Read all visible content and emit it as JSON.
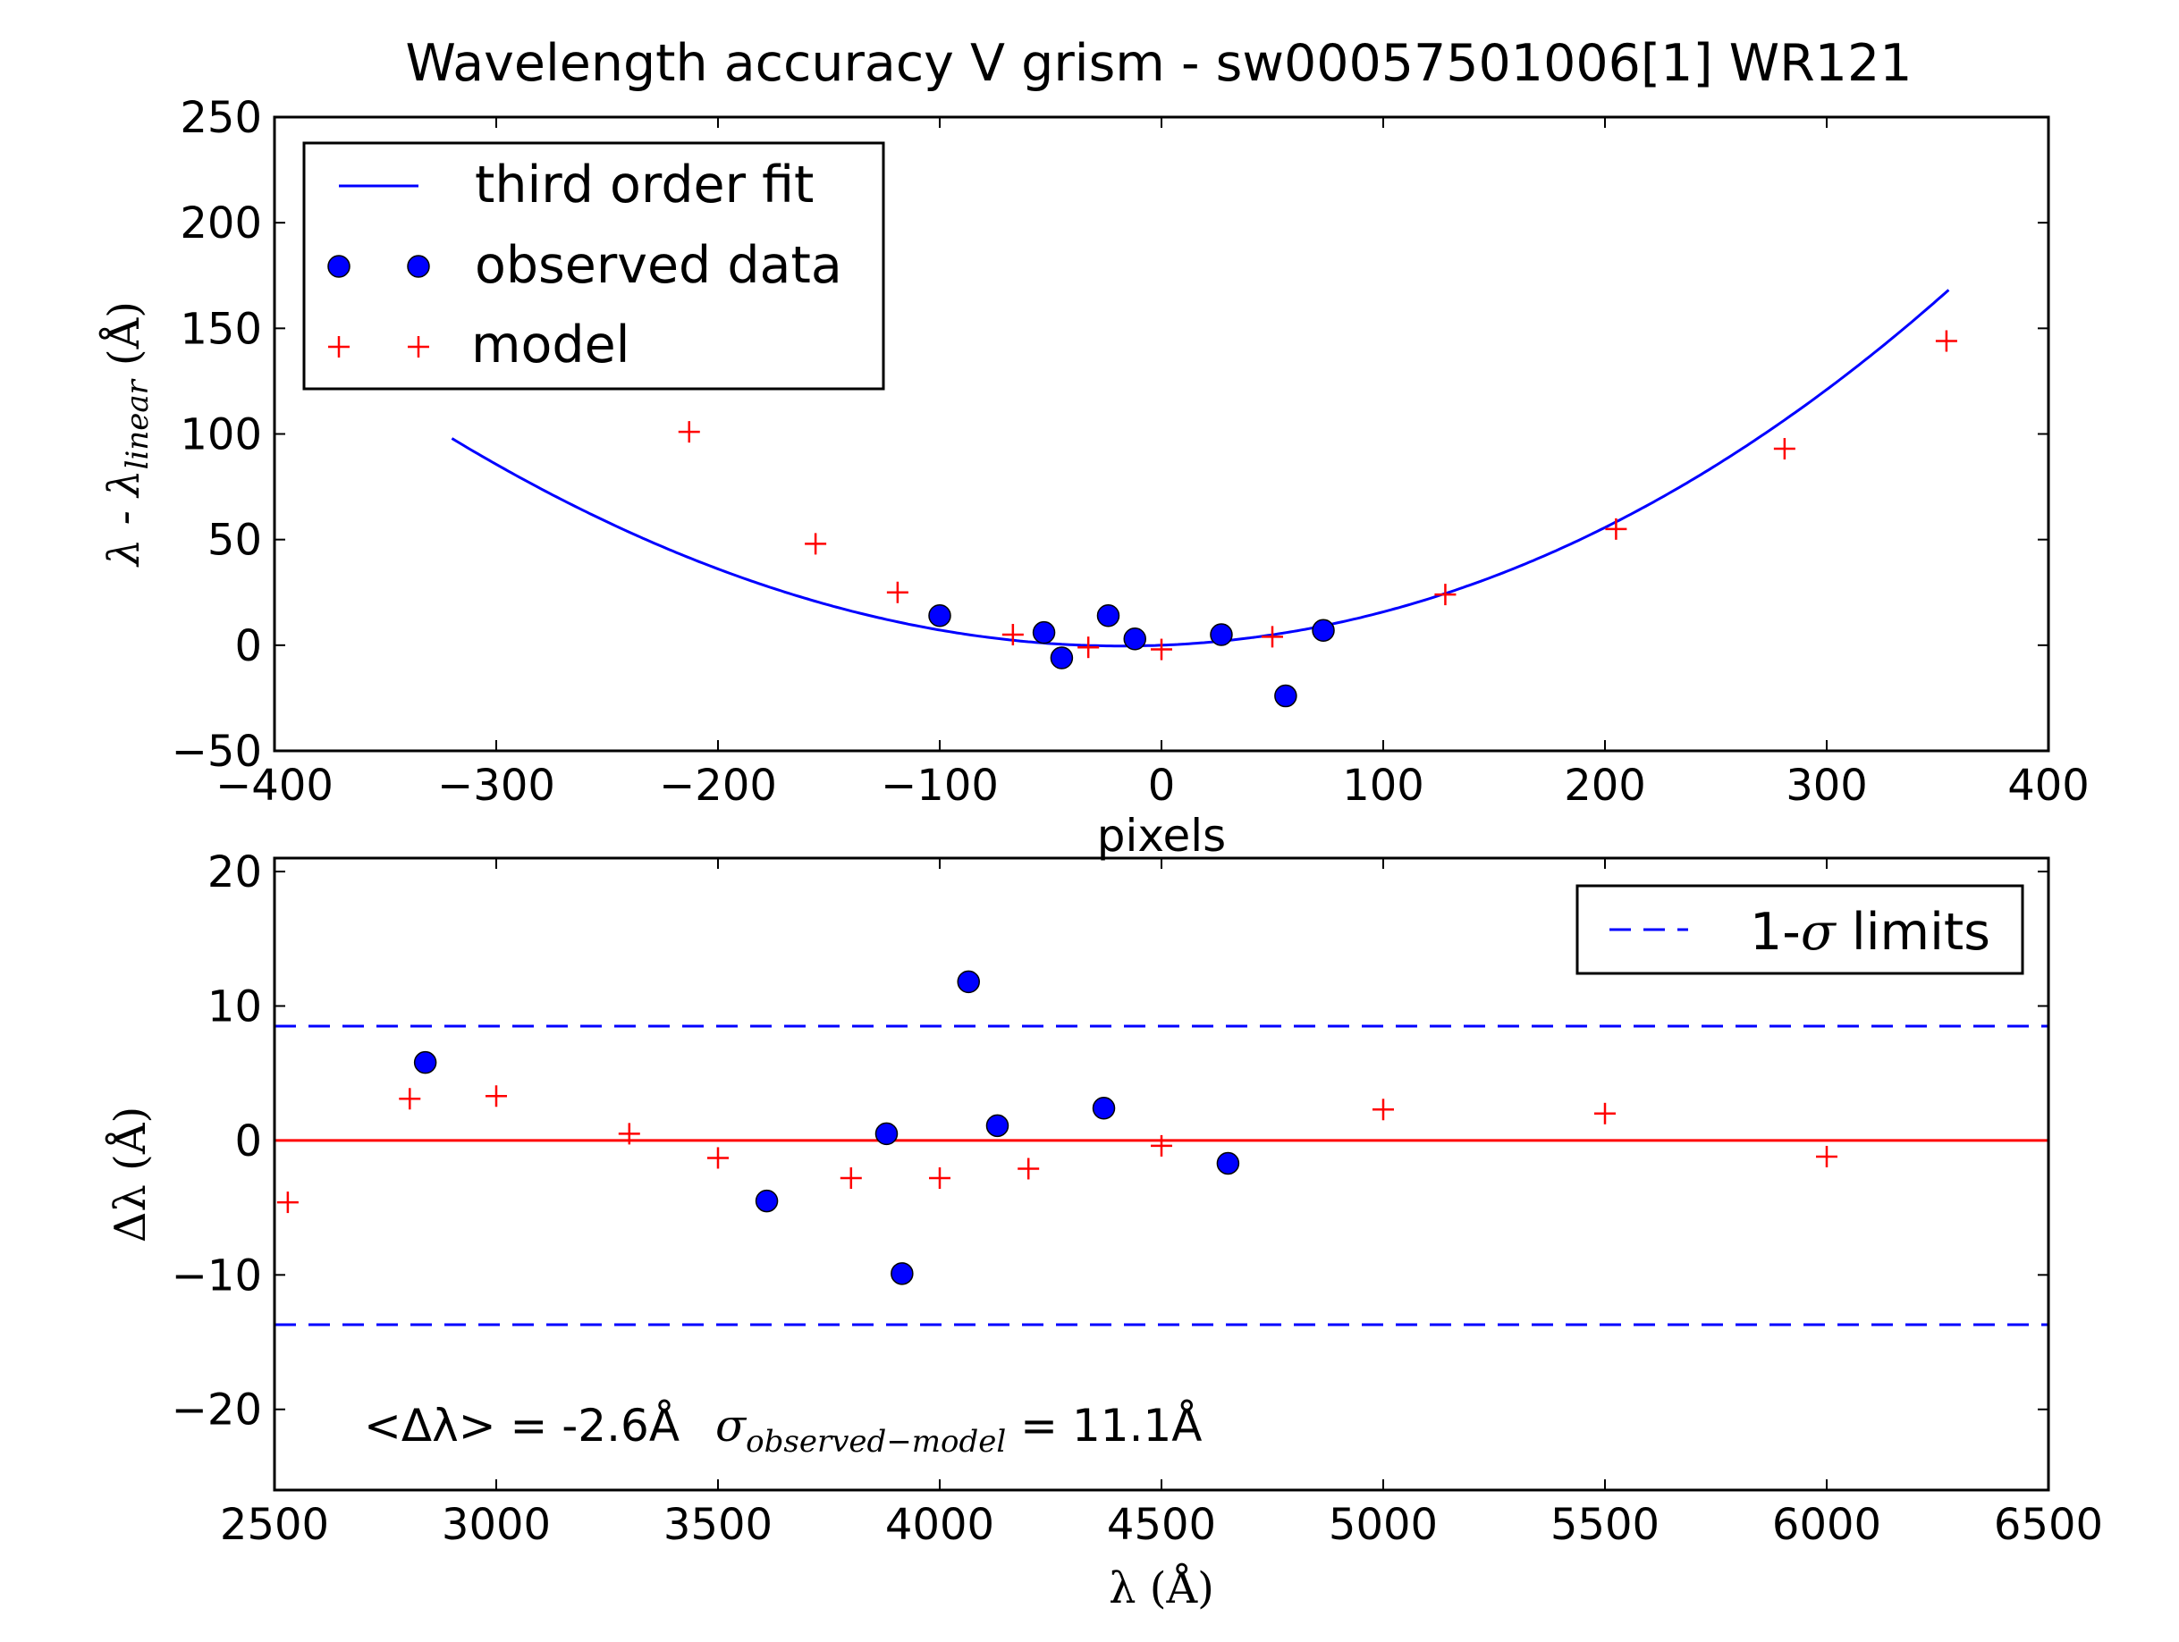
{
  "chart_data": [
    {
      "type": "scatter",
      "title": "Wavelength accuracy V grism - sw00057501006[1] WR121",
      "xlabel": "pixels",
      "ylabel": "λ - λlinear (Å)",
      "ylabel_main": "λ - λ",
      "ylabel_sub": "linear",
      "ylabel_unit": "(Å)",
      "xlim": [
        -400,
        400
      ],
      "ylim": [
        -50,
        250
      ],
      "xticks": [
        -400,
        -300,
        -200,
        -100,
        0,
        100,
        200,
        300,
        400
      ],
      "yticks": [
        -50,
        0,
        50,
        100,
        150,
        200,
        250
      ],
      "grid": false,
      "legend_position": "top-left",
      "legend": [
        {
          "key": "fit",
          "label": "third order fit"
        },
        {
          "key": "observed",
          "label": "observed data"
        },
        {
          "key": "model",
          "label": "model"
        }
      ],
      "colors": {
        "fit": "#0000ff",
        "observed": "#0000ff",
        "model": "#ff0000"
      },
      "series": [
        {
          "name": "third order fit",
          "style": "line",
          "coeffs": [
            0,
            0.041,
            0.001148,
            2e-07
          ]
        },
        {
          "name": "observed data",
          "style": "circle",
          "x": [
            -100,
            -53,
            -45,
            -24,
            -12,
            27,
            56,
            73
          ],
          "y": [
            14,
            6,
            -6,
            14,
            3,
            5,
            -24,
            7
          ]
        },
        {
          "name": "model",
          "style": "plus",
          "x": [
            -213,
            -156,
            -119,
            -67,
            -33,
            0,
            50,
            128,
            205,
            281,
            354
          ],
          "y": [
            101,
            48,
            25,
            5,
            -1,
            -2,
            4,
            24,
            55,
            93,
            144
          ]
        }
      ]
    },
    {
      "type": "scatter",
      "title": "",
      "xlabel": "λ (Å)",
      "ylabel": "Δλ (Å)",
      "xlim": [
        2500,
        6500
      ],
      "ylim": [
        -26,
        21
      ],
      "xticks": [
        2500,
        3000,
        3500,
        4000,
        4500,
        5000,
        5500,
        6000,
        6500
      ],
      "yticks": [
        -20,
        -10,
        0,
        10,
        20
      ],
      "grid": false,
      "legend_position": "top-right",
      "legend": [
        {
          "key": "sigma",
          "label_pre": "1-",
          "label_sym": "σ",
          "label_post": " limits"
        }
      ],
      "colors": {
        "sigma": "#0000ff",
        "zero": "#ff0000",
        "observed": "#0000ff",
        "model": "#ff0000"
      },
      "sigma_limits": [
        8.5,
        -13.7
      ],
      "zero_line": 0,
      "series": [
        {
          "name": "observed",
          "style": "circle",
          "x": [
            2840,
            3610,
            3880,
            3915,
            4065,
            4130,
            4370,
            4650
          ],
          "y": [
            5.8,
            -4.5,
            0.5,
            -9.9,
            11.8,
            1.1,
            2.4,
            -1.7
          ]
        },
        {
          "name": "model",
          "style": "plus",
          "x": [
            2530,
            2805,
            3000,
            3300,
            3500,
            3800,
            4000,
            4200,
            4500,
            5000,
            5500,
            6000
          ],
          "y": [
            -4.6,
            3.1,
            3.3,
            0.5,
            -1.3,
            -2.8,
            -2.8,
            -2.1,
            -0.4,
            2.3,
            2.0,
            -1.2
          ]
        }
      ],
      "annotation": {
        "mean_text": "<Δλ> = -2.6Å",
        "sigma_symbol": "σ",
        "sigma_subscript": "observed−model",
        "sigma_value": " = 11.1Å"
      }
    }
  ]
}
